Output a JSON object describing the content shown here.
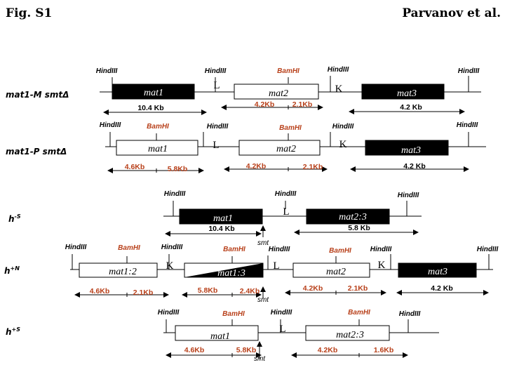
{
  "header": {
    "fig_label": "Fig. S1",
    "authors": "Parvanov et al."
  },
  "labels": {
    "hindiii": "HindIII",
    "bamhi": "BamHI",
    "L": "L",
    "K": "K",
    "smt": "smt"
  },
  "strains": [
    {
      "id": "mat1m",
      "name": "mat1-M smtΔ"
    },
    {
      "id": "mat1p",
      "name": "mat1-P smtΔ"
    },
    {
      "id": "hms",
      "base": "h",
      "sup": "-S"
    },
    {
      "id": "hpn",
      "base": "h",
      "sup": "+N"
    },
    {
      "id": "hps",
      "base": "h",
      "sup": "+S"
    }
  ],
  "genes": {
    "mat1": "mat1",
    "mat2": "mat2",
    "mat3": "mat3",
    "mat23": "mat2:3",
    "mat12": "mat1:2",
    "mat13": "mat1:3"
  },
  "fragments": {
    "f10_4": "10.4 Kb",
    "f4_2": "4.2 Kb",
    "f5_8": "5.8 Kb",
    "r4_2": "4.2Kb",
    "r2_1": "2.1Kb",
    "r4_6": "4.6Kb",
    "r5_8": "5.8Kb",
    "r2_4": "2.4Kb",
    "r1_6": "1.6Kb"
  },
  "colors": {
    "restriction_bamhi": "#b8401a",
    "restriction_hindiii": "#000000",
    "mat_expressed": "#000000"
  }
}
